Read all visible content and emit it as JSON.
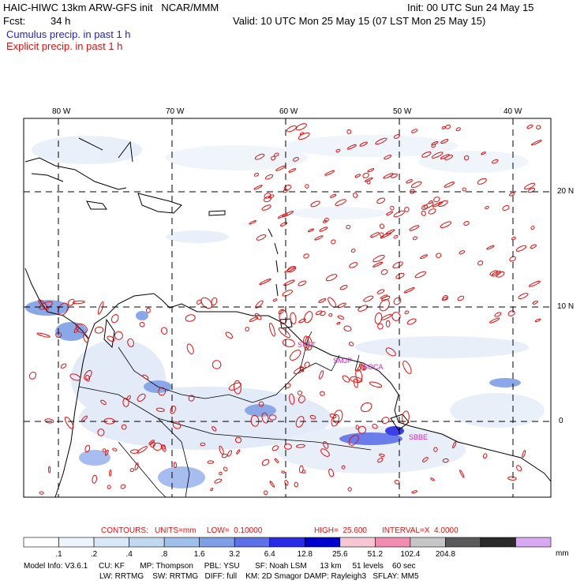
{
  "header": {
    "title_left": "HAIC-HIWC 13km ARW-GFS init   NCAR/MMM",
    "init": "Init: 00 UTC Sun 24 May 15",
    "fcst_label": "Fcst:",
    "fcst_value": "34 h",
    "valid": "Valid: 10 UTC Mon 25 May 15 (07 LST Mon 25 May 15)",
    "line_cumulus": "Cumulus precip. in past 1 h",
    "line_explicit": "Explicit precip. in past 1 h"
  },
  "map": {
    "lon_labels": [
      "80 W",
      "70 W",
      "60 W",
      "50 W",
      "40 W"
    ],
    "lat_labels": [
      "20 N",
      "10 N",
      "0"
    ],
    "stations": [
      "STET",
      "SMJP",
      "SOCA",
      "SBBE"
    ],
    "colors": {
      "contour": "#dd1111",
      "coast": "#000000",
      "station": "#cc22cc",
      "grid": "#000000"
    }
  },
  "contours_line": {
    "contours": "CONTOURS:",
    "units": "UNITS=mm",
    "low": "LOW=  0.10000",
    "high": "HIGH=  25.600",
    "interval": "INTERVAL=X  4.0000"
  },
  "legend": {
    "labels": [
      ".1",
      ".2",
      ".4",
      ".8",
      "1.6",
      "3.2",
      "6.4",
      "12.8",
      "25.6",
      "51.2",
      "102.4",
      "204.8"
    ],
    "unit": "mm",
    "colors": [
      "#ffffff",
      "#eef4fb",
      "#d8e8f6",
      "#c0d8f0",
      "#9ec0ea",
      "#7e9ee6",
      "#5c70e8",
      "#2a2ae6",
      "#0000cc",
      "#f6c6d2",
      "#f08cb0",
      "#c6c6c6",
      "#5a5a5a",
      "#2a2a2a",
      "#d8a8f0"
    ]
  },
  "footer": {
    "line1": "Model Info: V3.6.1     CU: KF       MP: Thompson     PBL: YSU       SF: Noah LSM      13 km     51 levels    60 sec",
    "line2": "LW: RRTMG    SW: RRTMG   DIFF: full    KM: 2D Smagor DAMP: Rayleigh3   SFLAY: MM5"
  }
}
